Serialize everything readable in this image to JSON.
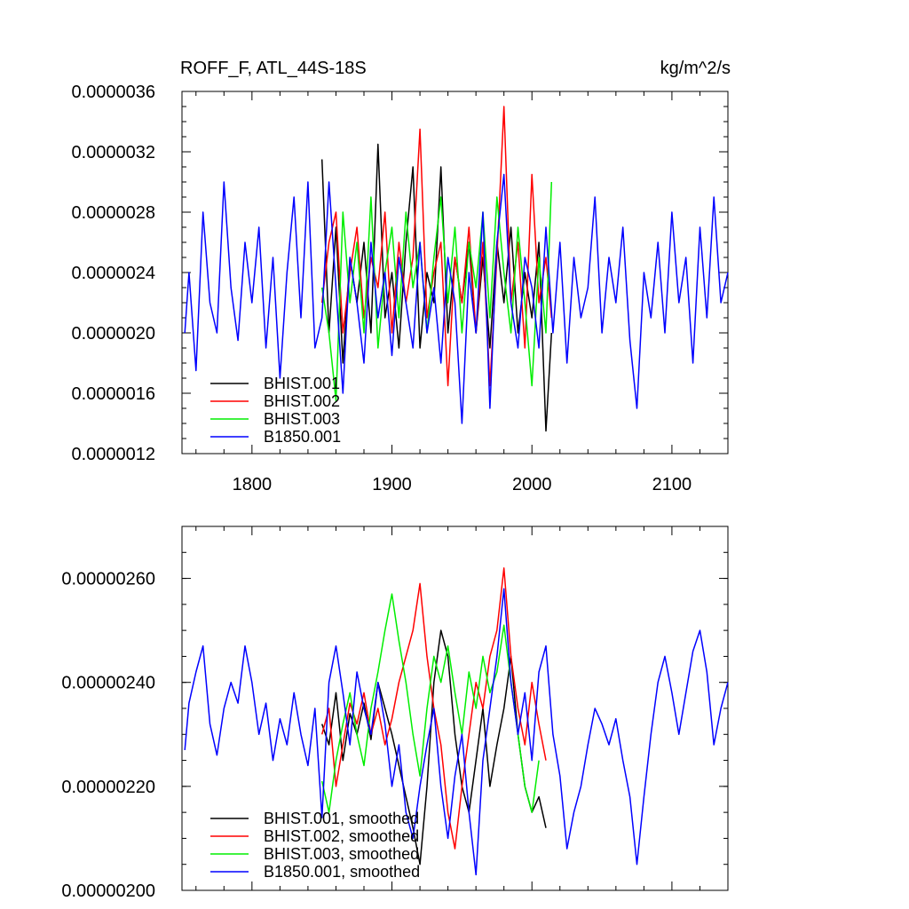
{
  "chart_data": [
    {
      "type": "line",
      "title": "ROFF_F, ATL_44S-18S",
      "units": "kg/m^2/s",
      "xlim": [
        1750,
        2140
      ],
      "ylim": [
        1.2e-06,
        3.6e-06
      ],
      "xticks": [
        1800,
        1900,
        2000,
        2100
      ],
      "xtick_labels": [
        "1800",
        "1900",
        "2000",
        "2100"
      ],
      "yticks": [
        1.2e-06,
        1.6e-06,
        2e-06,
        2.4e-06,
        2.8e-06,
        3.2e-06,
        3.6e-06
      ],
      "ytick_labels": [
        "0.0000012",
        "0.0000016",
        "0.0000020",
        "0.0000024",
        "0.0000028",
        "0.0000032",
        "0.0000036"
      ],
      "legend_position": "bottom-left",
      "series": [
        {
          "name": "BHIST.001",
          "color": "#000000",
          "x": [
            1850,
            1855,
            1860,
            1865,
            1870,
            1875,
            1880,
            1885,
            1890,
            1895,
            1900,
            1905,
            1910,
            1915,
            1920,
            1925,
            1930,
            1935,
            1940,
            1945,
            1950,
            1955,
            1960,
            1965,
            1970,
            1975,
            1980,
            1985,
            1990,
            1995,
            2000,
            2005,
            2010,
            2014
          ],
          "y": [
            3.15e-06,
            2e-06,
            2.7e-06,
            1.8e-06,
            2.5e-06,
            2.2e-06,
            2.6e-06,
            2e-06,
            3.25e-06,
            2.1e-06,
            2.4e-06,
            1.9e-06,
            2.6e-06,
            3.1e-06,
            1.9e-06,
            2.4e-06,
            2.2e-06,
            3.1e-06,
            2e-06,
            2.5e-06,
            2.2e-06,
            2.6e-06,
            2e-06,
            2.5e-06,
            1.9e-06,
            2.6e-06,
            2.2e-06,
            2.7e-06,
            2e-06,
            2.4e-06,
            2.1e-06,
            2.6e-06,
            1.35e-06,
            2e-06
          ]
        },
        {
          "name": "BHIST.002",
          "color": "#ff0000",
          "x": [
            1850,
            1855,
            1860,
            1865,
            1870,
            1875,
            1880,
            1885,
            1890,
            1895,
            1900,
            1905,
            1910,
            1915,
            1920,
            1925,
            1930,
            1935,
            1940,
            1945,
            1950,
            1955,
            1960,
            1965,
            1970,
            1975,
            1980,
            1985,
            1990,
            1995,
            2000,
            2005,
            2010,
            2014
          ],
          "y": [
            2.2e-06,
            2.6e-06,
            2.8e-06,
            2e-06,
            2.4e-06,
            2.7e-06,
            2.1e-06,
            2.5e-06,
            2.3e-06,
            2.8e-06,
            2e-06,
            2.6e-06,
            2.2e-06,
            2.5e-06,
            3.35e-06,
            2.1e-06,
            2.4e-06,
            2.6e-06,
            1.65e-06,
            2.5e-06,
            2.2e-06,
            2.7e-06,
            2e-06,
            2.6e-06,
            1.65e-06,
            2.5e-06,
            3.5e-06,
            2.2e-06,
            2.6e-06,
            1.9e-06,
            3.05e-06,
            2.2e-06,
            2.5e-06,
            2.1e-06
          ]
        },
        {
          "name": "BHIST.003",
          "color": "#00ee00",
          "x": [
            1850,
            1855,
            1860,
            1865,
            1870,
            1875,
            1880,
            1885,
            1890,
            1895,
            1900,
            1905,
            1910,
            1915,
            1920,
            1925,
            1930,
            1935,
            1940,
            1945,
            1950,
            1955,
            1960,
            1965,
            1970,
            1975,
            1980,
            1985,
            1990,
            1995,
            2000,
            2005,
            2010,
            2014
          ],
          "y": [
            2.3e-06,
            2e-06,
            1.55e-06,
            2.8e-06,
            2.2e-06,
            2.6e-06,
            2e-06,
            2.9e-06,
            1.9e-06,
            2.4e-06,
            2.7e-06,
            2.1e-06,
            2.8e-06,
            2.3e-06,
            2.6e-06,
            2e-06,
            2.5e-06,
            2.9e-06,
            2.2e-06,
            2.7e-06,
            2e-06,
            2.6e-06,
            2.3e-06,
            2.8e-06,
            2.1e-06,
            2.9e-06,
            2.4e-06,
            2e-06,
            2.7e-06,
            2.2e-06,
            1.65e-06,
            2.5e-06,
            2e-06,
            3e-06
          ]
        },
        {
          "name": "B1850.001",
          "color": "#0000ff",
          "x": [
            1752,
            1755,
            1760,
            1765,
            1770,
            1775,
            1780,
            1785,
            1790,
            1795,
            1800,
            1805,
            1810,
            1815,
            1820,
            1825,
            1830,
            1835,
            1840,
            1845,
            1850,
            1855,
            1860,
            1865,
            1870,
            1875,
            1880,
            1885,
            1890,
            1895,
            1900,
            1905,
            1910,
            1915,
            1920,
            1925,
            1930,
            1935,
            1940,
            1945,
            1950,
            1955,
            1960,
            1965,
            1970,
            1975,
            1980,
            1985,
            1990,
            1995,
            2000,
            2005,
            2010,
            2015,
            2020,
            2025,
            2030,
            2035,
            2040,
            2045,
            2050,
            2055,
            2060,
            2065,
            2070,
            2075,
            2080,
            2085,
            2090,
            2095,
            2100,
            2105,
            2110,
            2115,
            2120,
            2125,
            2130,
            2135,
            2140
          ],
          "y": [
            2e-06,
            2.4e-06,
            1.75e-06,
            2.8e-06,
            2.2e-06,
            2e-06,
            3e-06,
            2.3e-06,
            1.95e-06,
            2.6e-06,
            2.2e-06,
            2.7e-06,
            1.9e-06,
            2.5e-06,
            1.7e-06,
            2.4e-06,
            2.9e-06,
            2.1e-06,
            3e-06,
            1.9e-06,
            2.1e-06,
            3e-06,
            2.3e-06,
            1.6e-06,
            2.5e-06,
            2.2e-06,
            1.8e-06,
            2.6e-06,
            2.1e-06,
            2.4e-06,
            1.85e-06,
            2.5e-06,
            2.2e-06,
            1.9e-06,
            2.6e-06,
            2e-06,
            2.3e-06,
            1.8e-06,
            2.5e-06,
            2.2e-06,
            1.4e-06,
            2.4e-06,
            2e-06,
            2.8e-06,
            1.5e-06,
            2.6e-06,
            3.05e-06,
            2.2e-06,
            1.9e-06,
            2.5e-06,
            2.3e-06,
            1.9e-06,
            2.7e-06,
            2e-06,
            2.6e-06,
            1.8e-06,
            2.5e-06,
            2.1e-06,
            2.3e-06,
            2.9e-06,
            2e-06,
            2.5e-06,
            2.2e-06,
            2.7e-06,
            1.95e-06,
            1.5e-06,
            2.4e-06,
            2.1e-06,
            2.6e-06,
            2e-06,
            2.8e-06,
            2.2e-06,
            2.5e-06,
            1.8e-06,
            2.7e-06,
            2.1e-06,
            2.9e-06,
            2.2e-06,
            2.4e-06
          ]
        }
      ]
    },
    {
      "type": "line",
      "xlim": [
        1750,
        2140
      ],
      "ylim": [
        2e-06,
        2.7e-06
      ],
      "xticks": [
        1800,
        1900,
        2000,
        2100
      ],
      "xtick_labels": [],
      "yticks": [
        2e-06,
        2.2e-06,
        2.4e-06,
        2.6e-06
      ],
      "ytick_labels": [
        "0.00000200",
        "0.00000220",
        "0.00000240",
        "0.00000260"
      ],
      "legend_position": "bottom-left",
      "series": [
        {
          "name": "BHIST.001, smoothed",
          "color": "#000000",
          "x": [
            1850,
            1855,
            1860,
            1865,
            1870,
            1875,
            1880,
            1885,
            1890,
            1895,
            1900,
            1905,
            1910,
            1915,
            1920,
            1925,
            1930,
            1935,
            1940,
            1945,
            1950,
            1955,
            1960,
            1965,
            1970,
            1975,
            1980,
            1985,
            1990,
            1995,
            2000,
            2005,
            2010
          ],
          "y": [
            2.32e-06,
            2.28e-06,
            2.38e-06,
            2.25e-06,
            2.34e-06,
            2.3e-06,
            2.36e-06,
            2.29e-06,
            2.4e-06,
            2.35e-06,
            2.3e-06,
            2.24e-06,
            2.18e-06,
            2.12e-06,
            2.05e-06,
            2.2e-06,
            2.4e-06,
            2.5e-06,
            2.45e-06,
            2.3e-06,
            2.2e-06,
            2.15e-06,
            2.25e-06,
            2.35e-06,
            2.2e-06,
            2.28e-06,
            2.35e-06,
            2.45e-06,
            2.3e-06,
            2.2e-06,
            2.15e-06,
            2.18e-06,
            2.12e-06
          ]
        },
        {
          "name": "BHIST.002, smoothed",
          "color": "#ff0000",
          "x": [
            1850,
            1855,
            1860,
            1865,
            1870,
            1875,
            1880,
            1885,
            1890,
            1895,
            1900,
            1905,
            1910,
            1915,
            1920,
            1925,
            1930,
            1935,
            1940,
            1945,
            1950,
            1955,
            1960,
            1965,
            1970,
            1975,
            1980,
            1985,
            1990,
            1995,
            2000,
            2005,
            2010
          ],
          "y": [
            2.3e-06,
            2.35e-06,
            2.2e-06,
            2.28e-06,
            2.36e-06,
            2.32e-06,
            2.38e-06,
            2.3e-06,
            2.35e-06,
            2.28e-06,
            2.33e-06,
            2.4e-06,
            2.45e-06,
            2.5e-06,
            2.59e-06,
            2.45e-06,
            2.35e-06,
            2.28e-06,
            2.15e-06,
            2.08e-06,
            2.2e-06,
            2.3e-06,
            2.4e-06,
            2.35e-06,
            2.45e-06,
            2.5e-06,
            2.62e-06,
            2.45e-06,
            2.35e-06,
            2.28e-06,
            2.4e-06,
            2.32e-06,
            2.25e-06
          ]
        },
        {
          "name": "BHIST.003, smoothed",
          "color": "#00ee00",
          "x": [
            1850,
            1855,
            1860,
            1865,
            1870,
            1875,
            1880,
            1885,
            1890,
            1895,
            1900,
            1905,
            1910,
            1915,
            1920,
            1925,
            1930,
            1935,
            1940,
            1945,
            1950,
            1955,
            1960,
            1965,
            1970,
            1975,
            1980,
            1985,
            1990,
            1995,
            2000,
            2005
          ],
          "y": [
            2.21e-06,
            2.15e-06,
            2.25e-06,
            2.32e-06,
            2.38e-06,
            2.3e-06,
            2.24e-06,
            2.35e-06,
            2.42e-06,
            2.5e-06,
            2.57e-06,
            2.48e-06,
            2.4e-06,
            2.3e-06,
            2.22e-06,
            2.35e-06,
            2.45e-06,
            2.4e-06,
            2.47e-06,
            2.38e-06,
            2.3e-06,
            2.42e-06,
            2.35e-06,
            2.45e-06,
            2.38e-06,
            2.42e-06,
            2.51e-06,
            2.4e-06,
            2.3e-06,
            2.2e-06,
            2.15e-06,
            2.25e-06
          ]
        },
        {
          "name": "B1850.001, smoothed",
          "color": "#0000ff",
          "x": [
            1752,
            1755,
            1760,
            1765,
            1770,
            1775,
            1780,
            1785,
            1790,
            1795,
            1800,
            1805,
            1810,
            1815,
            1820,
            1825,
            1830,
            1835,
            1840,
            1845,
            1850,
            1855,
            1860,
            1865,
            1870,
            1875,
            1880,
            1885,
            1890,
            1895,
            1900,
            1905,
            1910,
            1915,
            1920,
            1925,
            1930,
            1935,
            1940,
            1945,
            1950,
            1955,
            1960,
            1965,
            1970,
            1975,
            1980,
            1985,
            1990,
            1995,
            2000,
            2005,
            2010,
            2015,
            2020,
            2025,
            2030,
            2035,
            2040,
            2045,
            2050,
            2055,
            2060,
            2065,
            2070,
            2075,
            2080,
            2085,
            2090,
            2095,
            2100,
            2105,
            2110,
            2115,
            2120,
            2125,
            2130,
            2135,
            2140
          ],
          "y": [
            2.27e-06,
            2.36e-06,
            2.42e-06,
            2.47e-06,
            2.32e-06,
            2.26e-06,
            2.35e-06,
            2.4e-06,
            2.36e-06,
            2.47e-06,
            2.4e-06,
            2.3e-06,
            2.36e-06,
            2.25e-06,
            2.33e-06,
            2.28e-06,
            2.38e-06,
            2.3e-06,
            2.24e-06,
            2.35e-06,
            2.14e-06,
            2.4e-06,
            2.47e-06,
            2.38e-06,
            2.28e-06,
            2.42e-06,
            2.35e-06,
            2.3e-06,
            2.4e-06,
            2.32e-06,
            2.2e-06,
            2.28e-06,
            2.15e-06,
            2.1e-06,
            2.2e-06,
            2.28e-06,
            2.35e-06,
            2.2e-06,
            2.1e-06,
            2.22e-06,
            2.3e-06,
            2.15e-06,
            2.03e-06,
            2.25e-06,
            2.35e-06,
            2.45e-06,
            2.58e-06,
            2.4e-06,
            2.3e-06,
            2.38e-06,
            2.25e-06,
            2.42e-06,
            2.47e-06,
            2.3e-06,
            2.22e-06,
            2.08e-06,
            2.15e-06,
            2.2e-06,
            2.28e-06,
            2.35e-06,
            2.32e-06,
            2.28e-06,
            2.33e-06,
            2.25e-06,
            2.18e-06,
            2.05e-06,
            2.18e-06,
            2.3e-06,
            2.4e-06,
            2.45e-06,
            2.38e-06,
            2.3e-06,
            2.38e-06,
            2.46e-06,
            2.5e-06,
            2.42e-06,
            2.28e-06,
            2.35e-06,
            2.4e-06
          ]
        }
      ]
    }
  ]
}
